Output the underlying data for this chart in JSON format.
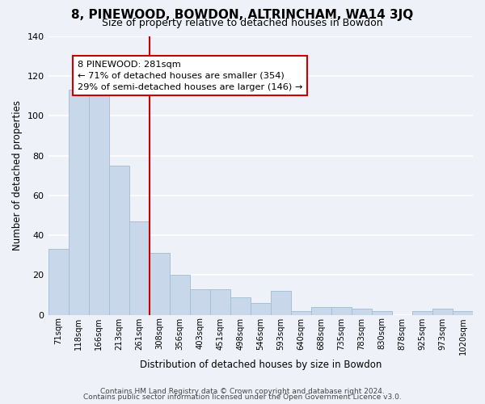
{
  "title": "8, PINEWOOD, BOWDON, ALTRINCHAM, WA14 3JQ",
  "subtitle": "Size of property relative to detached houses in Bowdon",
  "xlabel": "Distribution of detached houses by size in Bowdon",
  "ylabel": "Number of detached properties",
  "bar_color": "#c8d8ea",
  "bar_edge_color": "#a8c0d4",
  "background_color": "#eef2f8",
  "grid_color": "white",
  "categories": [
    "71sqm",
    "118sqm",
    "166sqm",
    "213sqm",
    "261sqm",
    "308sqm",
    "356sqm",
    "403sqm",
    "451sqm",
    "498sqm",
    "546sqm",
    "593sqm",
    "640sqm",
    "688sqm",
    "735sqm",
    "783sqm",
    "830sqm",
    "878sqm",
    "925sqm",
    "973sqm",
    "1020sqm"
  ],
  "values": [
    33,
    113,
    115,
    75,
    47,
    31,
    20,
    13,
    13,
    9,
    6,
    12,
    2,
    4,
    4,
    3,
    2,
    0,
    2,
    3,
    2
  ],
  "ylim": [
    0,
    140
  ],
  "yticks": [
    0,
    20,
    40,
    60,
    80,
    100,
    120,
    140
  ],
  "annotation_text": "8 PINEWOOD: 281sqm\n← 71% of detached houses are smaller (354)\n29% of semi-detached houses are larger (146) →",
  "vline_x": 4.5,
  "vline_color": "#cc0000",
  "annotation_box_color": "white",
  "annotation_box_edge": "#cc0000",
  "footer_line1": "Contains HM Land Registry data © Crown copyright and database right 2024.",
  "footer_line2": "Contains public sector information licensed under the Open Government Licence v3.0."
}
